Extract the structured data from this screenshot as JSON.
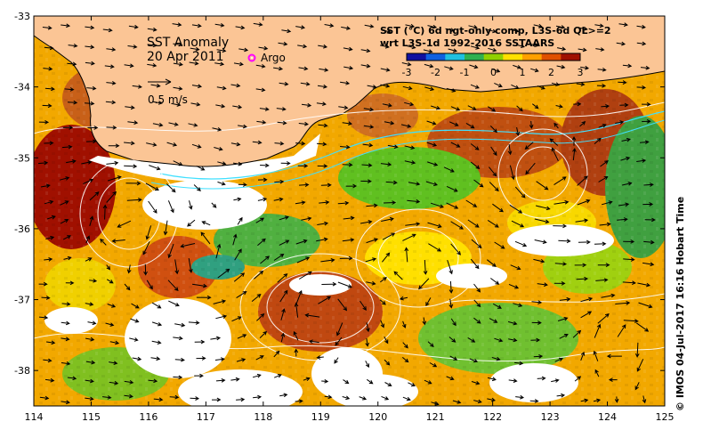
{
  "map": {
    "title": "SST Anomaly",
    "date": "20 Apr 2011",
    "argo_label": "Argo",
    "velocity_scale_label": "0.5 m/s",
    "product_line1": "SST (°C) 6d ngt-only comp, L3S-6d QL>=2",
    "product_line2": "wrt L3S-1d 1992-2016 SSTAARS",
    "credit": "© IMOS 04-Jul-2017 16:16 Hobart Time",
    "colors": {
      "land": "#fbc595",
      "no_data": "#ffffff",
      "coast": "#000000",
      "contour": "#ffffff",
      "front": "#40e0ff"
    }
  },
  "colorbar": {
    "ticks": [
      "-3",
      "-2",
      "-1",
      "0",
      "1",
      "2",
      "3"
    ],
    "range": [
      -3,
      3
    ],
    "colors": [
      "#1010a0",
      "#1060e0",
      "#20c0e0",
      "#30b050",
      "#90d000",
      "#ffe000",
      "#ffa000",
      "#e05000",
      "#a01000"
    ]
  },
  "axes": {
    "x_ticks": [
      "114",
      "115",
      "116",
      "117",
      "118",
      "119",
      "120",
      "121",
      "122",
      "123",
      "124",
      "125"
    ],
    "y_ticks": [
      "-33",
      "-34",
      "-35",
      "-36",
      "-37",
      "-38"
    ],
    "xlim": [
      114,
      125
    ],
    "ylim": [
      -38.5,
      -33
    ]
  }
}
